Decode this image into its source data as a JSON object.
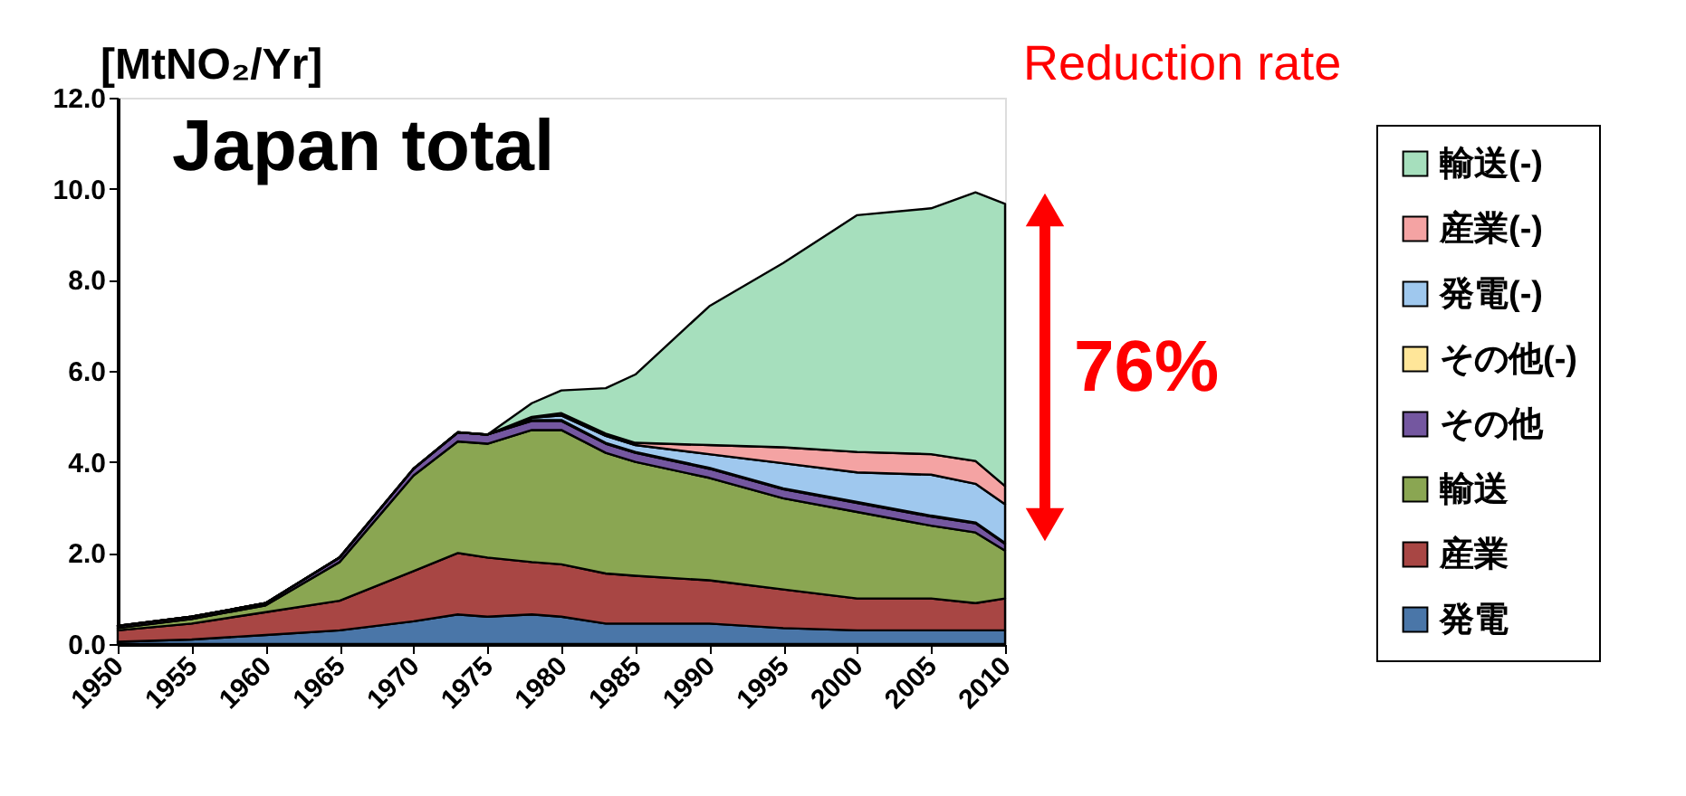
{
  "chart_data": {
    "type": "area",
    "stacked": true,
    "ylabel": "[MtNO₂/Yr]",
    "annotations": [
      "Japan total",
      "Reduction rate",
      "76%"
    ],
    "x": [
      1950,
      1955,
      1960,
      1965,
      1970,
      1973,
      1975,
      1978,
      1980,
      1983,
      1985,
      1990,
      1995,
      2000,
      2005,
      2008,
      2010
    ],
    "series": [
      {
        "name": "発電",
        "color": "#4a76a8",
        "values": [
          0.05,
          0.1,
          0.2,
          0.3,
          0.5,
          0.65,
          0.6,
          0.65,
          0.6,
          0.45,
          0.45,
          0.45,
          0.35,
          0.3,
          0.3,
          0.3,
          0.3
        ]
      },
      {
        "name": "産業",
        "color": "#a84644",
        "values": [
          0.25,
          0.35,
          0.5,
          0.65,
          1.1,
          1.35,
          1.3,
          1.15,
          1.15,
          1.1,
          1.05,
          0.95,
          0.85,
          0.7,
          0.7,
          0.6,
          0.7
        ]
      },
      {
        "name": "輸送",
        "color": "#8aa652",
        "values": [
          0.05,
          0.1,
          0.15,
          0.85,
          2.1,
          2.45,
          2.5,
          2.9,
          2.95,
          2.65,
          2.5,
          2.25,
          2.0,
          1.9,
          1.6,
          1.55,
          1.05
        ]
      },
      {
        "name": "その他",
        "color": "#7457a0",
        "values": [
          0.05,
          0.05,
          0.05,
          0.1,
          0.15,
          0.2,
          0.2,
          0.2,
          0.2,
          0.2,
          0.2,
          0.2,
          0.2,
          0.2,
          0.2,
          0.2,
          0.15
        ]
      },
      {
        "name": "その他(-)",
        "color": "#ffe699",
        "values": [
          0,
          0,
          0,
          0,
          0,
          0,
          0,
          0.02,
          0.02,
          0.02,
          0.02,
          0.02,
          0.02,
          0.02,
          0.02,
          0.02,
          0.02
        ]
      },
      {
        "name": "発電(-)",
        "color": "#9fc8ee",
        "values": [
          0,
          0,
          0,
          0,
          0,
          0,
          0,
          0.05,
          0.1,
          0.15,
          0.15,
          0.3,
          0.55,
          0.65,
          0.9,
          0.85,
          0.85
        ]
      },
      {
        "name": "産業(-)",
        "color": "#f4a3a3",
        "values": [
          0,
          0,
          0,
          0,
          0,
          0,
          0,
          0.02,
          0.05,
          0.05,
          0.05,
          0.2,
          0.35,
          0.45,
          0.45,
          0.5,
          0.4
        ]
      },
      {
        "name": "輸送(-)",
        "color": "#a6dfbd",
        "values": [
          0,
          0,
          0,
          0,
          0,
          0,
          0,
          0.3,
          0.5,
          1.0,
          1.5,
          3.05,
          4.05,
          5.2,
          5.4,
          5.9,
          6.2
        ]
      }
    ],
    "xlim": [
      1950,
      2010
    ],
    "xticks": [
      1950,
      1955,
      1960,
      1965,
      1970,
      1975,
      1980,
      1985,
      1990,
      1995,
      2000,
      2005,
      2010
    ],
    "ylim": [
      0,
      12
    ],
    "yticks": [
      {
        "value": 0,
        "label": "0.0"
      },
      {
        "value": 2,
        "label": "2.0"
      },
      {
        "value": 4,
        "label": "4.0"
      },
      {
        "value": 6,
        "label": "6.0"
      },
      {
        "value": 8,
        "label": "8.0"
      },
      {
        "value": 10,
        "label": "10.0"
      },
      {
        "value": 12,
        "label": "12.0"
      }
    ],
    "grid": false,
    "legend": "right",
    "marker": "none"
  }
}
